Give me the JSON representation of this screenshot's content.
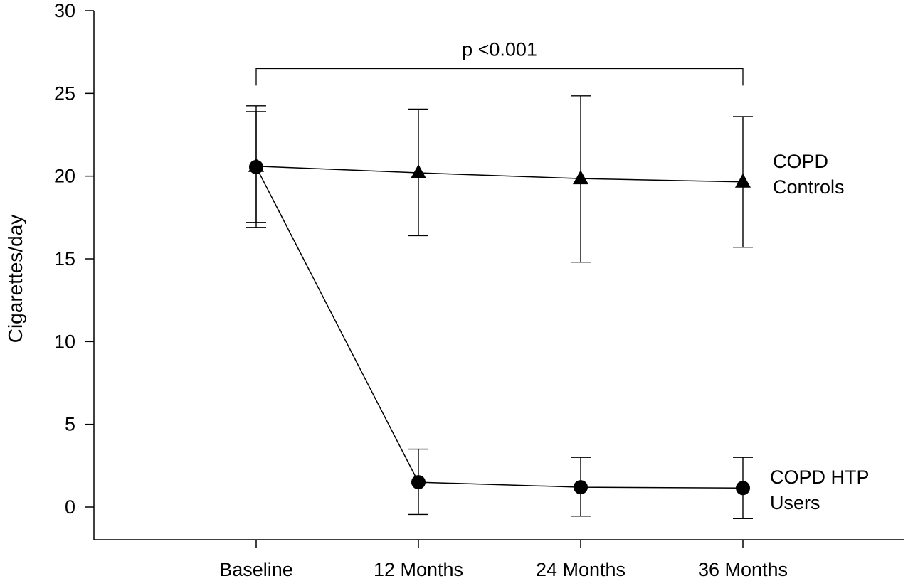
{
  "chart_data": {
    "type": "line",
    "title": "",
    "xlabel": "",
    "ylabel": "Cigarettes/day",
    "categories": [
      "Baseline",
      "12 Months",
      "24 Months",
      "36 Months"
    ],
    "ylim": [
      -2,
      30
    ],
    "yticks": [
      0,
      5,
      10,
      15,
      20,
      25,
      30
    ],
    "grid": false,
    "legend": "none; series labelled at right end of lines",
    "series": [
      {
        "name": "COPD Controls",
        "name_lines": [
          "COPD",
          "Controls"
        ],
        "marker": "triangle",
        "values": [
          20.6,
          20.2,
          19.85,
          19.65
        ],
        "error_upper": [
          23.9,
          24.05,
          24.85,
          23.6
        ],
        "error_lower": [
          17.2,
          16.4,
          14.8,
          15.7
        ]
      },
      {
        "name": "COPD HTP Users",
        "name_lines": [
          "COPD HTP",
          "Users"
        ],
        "marker": "circle",
        "values": [
          20.55,
          1.5,
          1.2,
          1.15
        ],
        "error_upper": [
          24.25,
          3.5,
          3.0,
          3.0
        ],
        "error_lower": [
          16.9,
          -0.45,
          -0.55,
          -0.7
        ]
      }
    ],
    "annotations": [
      {
        "text": "p <0.001",
        "bracket_from": "Baseline",
        "bracket_to": "36 Months",
        "level": 26.5
      }
    ],
    "colors": {
      "line": "#000000",
      "marker": "#000000",
      "background": "#ffffff"
    }
  }
}
